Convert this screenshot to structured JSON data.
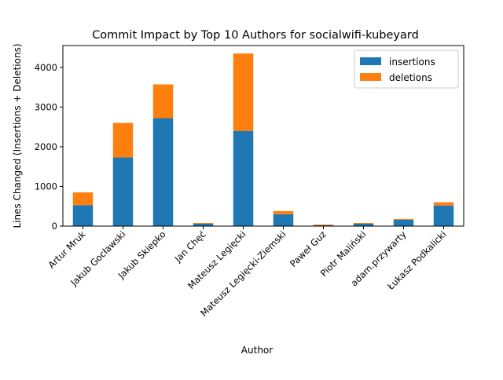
{
  "chart_data": {
    "type": "bar",
    "stacked": true,
    "title": "Commit Impact by Top 10 Authors for socialwifi-kubeyard",
    "xlabel": "Author",
    "ylabel": "Lines Changed (Insertions + Deletions)",
    "ylim": [
      0,
      4550
    ],
    "yticks": [
      0,
      1000,
      2000,
      3000,
      4000
    ],
    "grid": false,
    "legend_position": "top-right",
    "categories": [
      "Artur Mruk",
      "Jakub Gocławski",
      "Jakub Skiepko",
      "Jan Chęć",
      "Mateusz Legięcki",
      "Mateusz Legięcki-Ziemski",
      "Paweł Guz",
      "Piotr Maliński",
      "adam.przywarty",
      "Łukasz Podkalicki"
    ],
    "series": [
      {
        "name": "insertions",
        "color": "#1f77b4",
        "values": [
          530,
          1730,
          2720,
          60,
          2400,
          300,
          20,
          60,
          160,
          520
        ]
      },
      {
        "name": "deletions",
        "color": "#ff7f0e",
        "values": [
          320,
          870,
          850,
          20,
          1950,
          80,
          20,
          20,
          20,
          80
        ]
      }
    ]
  }
}
